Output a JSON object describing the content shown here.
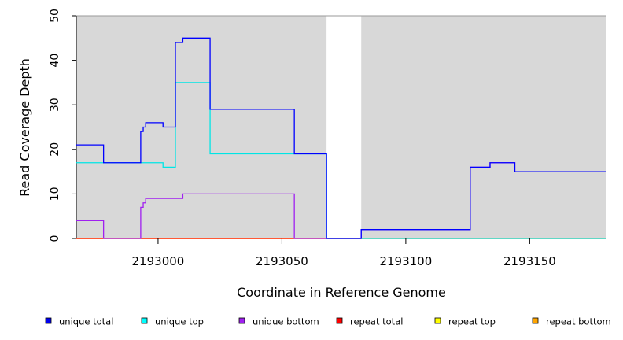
{
  "chart_data": {
    "type": "line",
    "step": true,
    "xlabel": "Coordinate in Reference Genome",
    "ylabel": "Read Coverage Depth",
    "xlim": [
      2192967,
      2193181
    ],
    "ylim": [
      0,
      50
    ],
    "xticks": [
      2193000,
      2193050,
      2193100,
      2193150
    ],
    "yticks": [
      0,
      10,
      20,
      30,
      40,
      50
    ],
    "background": "#d8d8d8",
    "gap_regions": [
      [
        2193068,
        2193082
      ]
    ],
    "legend_position": "bottom",
    "series": [
      {
        "name": "unique total",
        "color": "#0000ff",
        "legend_color": "#0000ee",
        "points": [
          [
            2192967,
            21
          ],
          [
            2192978,
            21
          ],
          [
            2192978,
            17
          ],
          [
            2192993,
            17
          ],
          [
            2192993,
            24
          ],
          [
            2192994,
            24
          ],
          [
            2192994,
            25
          ],
          [
            2192995,
            25
          ],
          [
            2192995,
            26
          ],
          [
            2193002,
            26
          ],
          [
            2193002,
            25
          ],
          [
            2193007,
            25
          ],
          [
            2193007,
            44
          ],
          [
            2193010,
            44
          ],
          [
            2193010,
            45
          ],
          [
            2193021,
            45
          ],
          [
            2193021,
            29
          ],
          [
            2193055,
            29
          ],
          [
            2193055,
            19
          ],
          [
            2193068,
            19
          ],
          [
            2193068,
            0
          ],
          [
            2193082,
            0
          ],
          [
            2193082,
            2
          ],
          [
            2193126,
            2
          ],
          [
            2193126,
            16
          ],
          [
            2193134,
            16
          ],
          [
            2193134,
            17
          ],
          [
            2193144,
            17
          ],
          [
            2193144,
            15
          ],
          [
            2193181,
            15
          ]
        ]
      },
      {
        "name": "unique top",
        "color": "#00e5e5",
        "legend_color": "#00ffff",
        "points": [
          [
            2192967,
            17
          ],
          [
            2193002,
            17
          ],
          [
            2193002,
            16
          ],
          [
            2193007,
            16
          ],
          [
            2193007,
            35
          ],
          [
            2193021,
            35
          ],
          [
            2193021,
            19
          ],
          [
            2193068,
            19
          ],
          [
            2193068,
            0
          ],
          [
            2193181,
            0
          ]
        ]
      },
      {
        "name": "unique bottom",
        "color": "#a020f0",
        "legend_color": "#a020f0",
        "points": [
          [
            2192967,
            4
          ],
          [
            2192978,
            4
          ],
          [
            2192978,
            0
          ],
          [
            2192993,
            0
          ],
          [
            2192993,
            7
          ],
          [
            2192994,
            7
          ],
          [
            2192994,
            8
          ],
          [
            2192995,
            8
          ],
          [
            2192995,
            9
          ],
          [
            2193010,
            9
          ],
          [
            2193010,
            10
          ],
          [
            2193055,
            10
          ],
          [
            2193055,
            0
          ],
          [
            2193068,
            0
          ],
          [
            2193082,
            0
          ],
          [
            2193082,
            2
          ],
          [
            2193126,
            2
          ],
          [
            2193126,
            16
          ],
          [
            2193134,
            16
          ],
          [
            2193134,
            17
          ],
          [
            2193144,
            17
          ],
          [
            2193144,
            15
          ],
          [
            2193181,
            15
          ]
        ]
      },
      {
        "name": "repeat total",
        "color": "#ff0000",
        "legend_color": "#ff0000",
        "points": [
          [
            2192967,
            0
          ],
          [
            2193181,
            0
          ]
        ]
      },
      {
        "name": "repeat top",
        "color": "#ffff00",
        "legend_color": "#ffff00",
        "points": [
          [
            2192967,
            0
          ],
          [
            2193181,
            0
          ]
        ]
      },
      {
        "name": "repeat bottom",
        "color": "#ffa500",
        "legend_color": "#ffa500",
        "points": [
          [
            2192967,
            0
          ],
          [
            2193068,
            0
          ]
        ]
      }
    ]
  }
}
